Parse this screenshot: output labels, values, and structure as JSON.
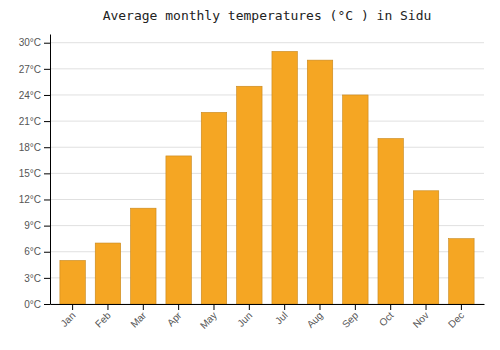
{
  "chart_data": {
    "type": "bar",
    "title": "Average monthly temperatures (°C ) in Sidu",
    "categories": [
      "Jan",
      "Feb",
      "Mar",
      "Apr",
      "May",
      "Jun",
      "Jul",
      "Aug",
      "Sep",
      "Oct",
      "Nov",
      "Dec"
    ],
    "values": [
      5.0,
      7.0,
      11.0,
      17.0,
      22.0,
      25.0,
      29.0,
      28.0,
      24.0,
      19.0,
      13.0,
      7.5
    ],
    "color": "#F5A623",
    "ylim": [
      0,
      31
    ],
    "yticks": [
      {
        "value": 0,
        "label": "0°C"
      },
      {
        "value": 3,
        "label": "3°C"
      },
      {
        "value": 6,
        "label": "6°C"
      },
      {
        "value": 9,
        "label": "9°C"
      },
      {
        "value": 12,
        "label": "12°C"
      },
      {
        "value": 15,
        "label": "15°C"
      },
      {
        "value": 18,
        "label": "18°C"
      },
      {
        "value": 21,
        "label": "21°C"
      },
      {
        "value": 24,
        "label": "24°C"
      },
      {
        "value": 27,
        "label": "27°C"
      },
      {
        "value": 30,
        "label": "30°C"
      }
    ],
    "grid": true
  }
}
